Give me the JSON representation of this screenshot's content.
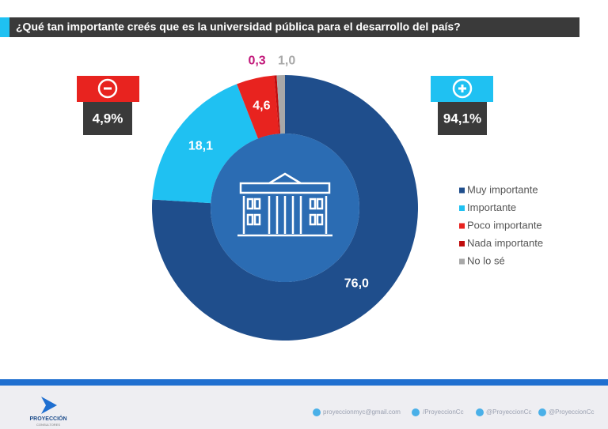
{
  "chart_data": {
    "type": "donut",
    "title": "¿Qué tan importante creés que es la universidad pública para el desarrollo del país?",
    "categories": [
      "Muy importante",
      "Importante",
      "Poco importante",
      "Nada importante",
      "No lo sé"
    ],
    "values": [
      76.0,
      18.1,
      4.6,
      0.3,
      1.0
    ],
    "value_labels": [
      "76,0",
      "18,1",
      "4,6",
      "0,3",
      "1,0"
    ],
    "colors": [
      "#1f4e8c",
      "#1fc1f2",
      "#e8231f",
      "#c00d0d",
      "#a8a8a8"
    ],
    "label_colors": [
      "#ffffff",
      "#ffffff",
      "#ffffff",
      "#c2187a",
      "#a8a8a8"
    ],
    "negative_total": {
      "value": 4.9,
      "label": "4,9%"
    },
    "positive_total": {
      "value": 94.1,
      "label": "94,1%"
    }
  },
  "footer": {
    "brand": "PROYECCIÓN",
    "brand_sub": "CONSULTORES",
    "email": "proyeccionmyc@gmail.com",
    "facebook": "/ProyeccionCc",
    "twitter": "@ProyeccionCc",
    "instagram": "@ProyeccionCc"
  }
}
